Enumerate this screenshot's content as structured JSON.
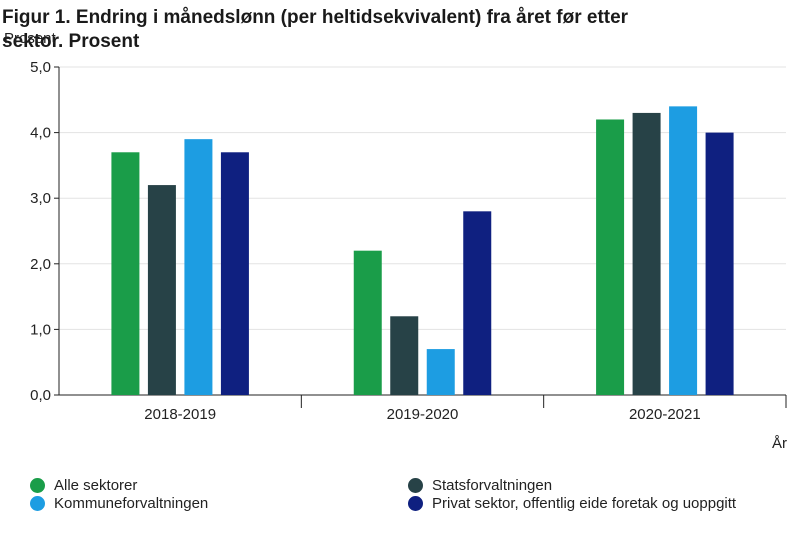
{
  "chart_data": {
    "type": "bar",
    "title": "Figur 1. Endring i månedslønn (per heltidsekvivalent) fra året før etter sektor. Prosent",
    "ylabel": "Prosent",
    "xlabel": "År",
    "ylim": [
      0,
      5
    ],
    "yticks": [
      "0,0",
      "1,0",
      "2,0",
      "3,0",
      "4,0",
      "5,0"
    ],
    "categories": [
      "2018-2019",
      "2019-2020",
      "2020-2021"
    ],
    "series": [
      {
        "name": "Alle sektorer",
        "color": "#1a9d49",
        "values": [
          3.7,
          2.2,
          4.2
        ]
      },
      {
        "name": "Statsforvaltningen",
        "color": "#274247",
        "values": [
          3.2,
          1.2,
          4.3
        ]
      },
      {
        "name": "Kommuneforvaltningen",
        "color": "#1d9de2",
        "values": [
          3.9,
          0.7,
          4.4
        ]
      },
      {
        "name": "Privat sektor, offentlig eide foretak og uoppgitt",
        "color": "#0f2080",
        "values": [
          3.7,
          2.8,
          4.0
        ]
      }
    ],
    "grid": true,
    "legend": "bottom"
  }
}
